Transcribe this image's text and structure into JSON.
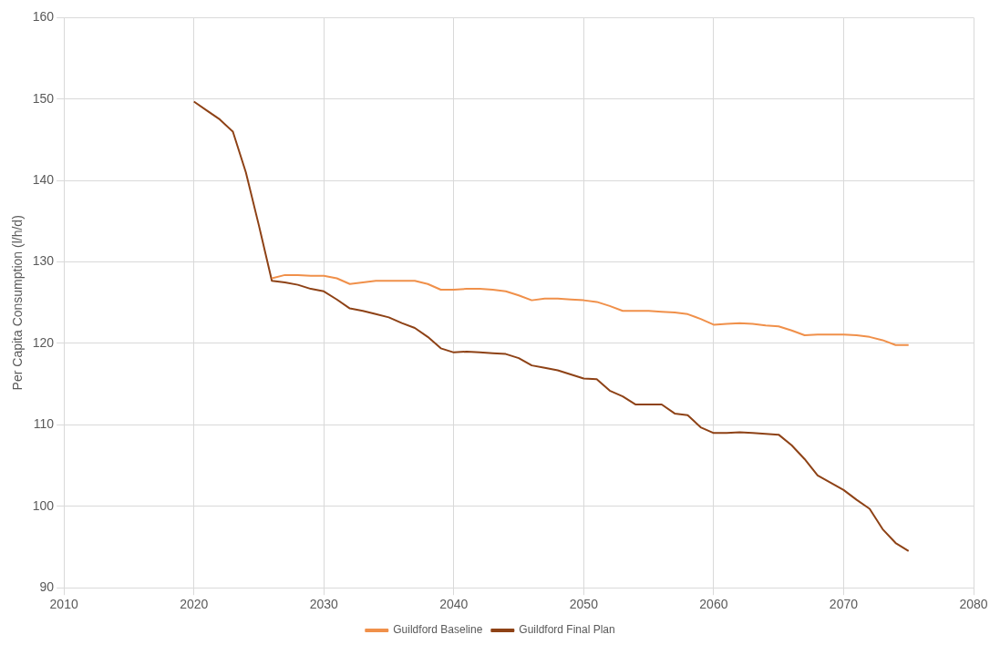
{
  "chart_data": {
    "type": "line",
    "ylabel": "Per Capita Consumption (l/h/d)",
    "xlim": [
      2010,
      2080
    ],
    "xticks": [
      2010,
      2020,
      2030,
      2040,
      2050,
      2060,
      2070,
      2080
    ],
    "ylim": [
      90,
      160
    ],
    "yticks": [
      90,
      100,
      110,
      120,
      130,
      140,
      150,
      160
    ],
    "grid": true,
    "legend": "bottom",
    "marker": "none",
    "series": [
      {
        "name": "Guildford Baseline",
        "color": "#f0904a",
        "x": [
          2026,
          2027,
          2028,
          2029,
          2030,
          2031,
          2032,
          2033,
          2034,
          2035,
          2036,
          2037,
          2038,
          2039,
          2040,
          2041,
          2042,
          2043,
          2044,
          2045,
          2046,
          2047,
          2048,
          2049,
          2050,
          2051,
          2052,
          2053,
          2054,
          2055,
          2056,
          2057,
          2058,
          2059,
          2060,
          2061,
          2062,
          2063,
          2064,
          2065,
          2066,
          2067,
          2068,
          2069,
          2070,
          2071,
          2072,
          2073,
          2074,
          2075
        ],
        "values": [
          128.0,
          128.4,
          128.4,
          128.3,
          128.3,
          128.0,
          127.3,
          127.5,
          127.7,
          127.7,
          127.7,
          127.7,
          127.3,
          126.6,
          126.6,
          126.7,
          126.7,
          126.6,
          126.4,
          125.9,
          125.3,
          125.5,
          125.5,
          125.4,
          125.3,
          125.1,
          124.6,
          124.0,
          124.0,
          124.0,
          123.9,
          123.8,
          123.6,
          123.0,
          122.3,
          122.4,
          122.5,
          122.4,
          122.2,
          122.1,
          121.6,
          121.0,
          121.1,
          121.1,
          121.1,
          121.0,
          120.8,
          120.4,
          119.8,
          119.8
        ]
      },
      {
        "name": "Guildford Final Plan",
        "color": "#8e4216",
        "x": [
          2020,
          2021,
          2022,
          2023,
          2024,
          2025,
          2026,
          2027,
          2028,
          2029,
          2030,
          2031,
          2032,
          2033,
          2034,
          2035,
          2036,
          2037,
          2038,
          2039,
          2040,
          2041,
          2042,
          2043,
          2044,
          2045,
          2046,
          2047,
          2048,
          2049,
          2050,
          2051,
          2052,
          2053,
          2054,
          2055,
          2056,
          2057,
          2058,
          2059,
          2060,
          2061,
          2062,
          2063,
          2064,
          2065,
          2066,
          2067,
          2068,
          2069,
          2070,
          2071,
          2072,
          2073,
          2074,
          2075
        ],
        "values": [
          149.7,
          148.6,
          147.5,
          146.0,
          141.0,
          134.5,
          127.7,
          127.5,
          127.2,
          126.7,
          126.4,
          125.4,
          124.3,
          124.0,
          123.6,
          123.2,
          122.5,
          121.9,
          120.8,
          119.4,
          118.9,
          119.0,
          118.9,
          118.8,
          118.7,
          118.2,
          117.3,
          117.0,
          116.7,
          116.2,
          115.7,
          115.6,
          114.2,
          113.5,
          112.5,
          112.5,
          112.5,
          111.4,
          111.2,
          109.7,
          109.0,
          109.0,
          109.1,
          109.0,
          108.9,
          108.8,
          107.5,
          105.8,
          103.8,
          102.9,
          102.0,
          100.8,
          99.7,
          97.2,
          95.5,
          94.5
        ]
      }
    ]
  }
}
